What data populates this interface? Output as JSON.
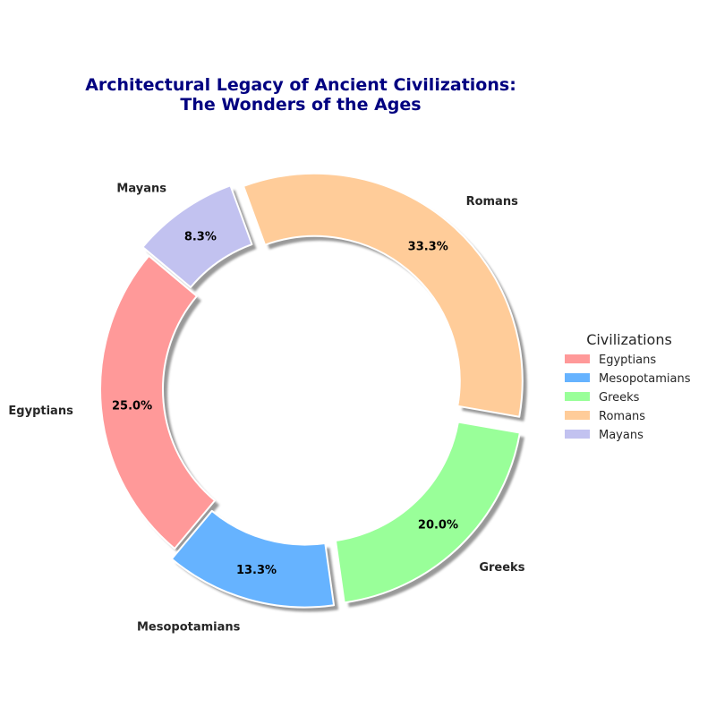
{
  "chart_data": {
    "type": "pie",
    "style": "donut",
    "title_lines": [
      "Architectural Legacy of Ancient Civilizations:",
      "The Wonders of the Ages"
    ],
    "categories": [
      "Egyptians",
      "Mesopotamians",
      "Greeks",
      "Romans",
      "Mayans"
    ],
    "values": [
      25.0,
      13.3,
      20.0,
      33.3,
      8.3
    ],
    "percent_labels": [
      "25.0%",
      "13.3%",
      "20.0%",
      "33.3%",
      "8.3%"
    ],
    "colors": [
      "#ff9999",
      "#66b3ff",
      "#99ff99",
      "#ffcc99",
      "#c2c2f0"
    ],
    "exploded": [
      false,
      true,
      true,
      true,
      true
    ],
    "shadow": true,
    "legend": {
      "title": "Civilizations",
      "placement": "right",
      "entries": [
        "Egyptians",
        "Mesopotamians",
        "Greeks",
        "Romans",
        "Mayans"
      ]
    }
  }
}
